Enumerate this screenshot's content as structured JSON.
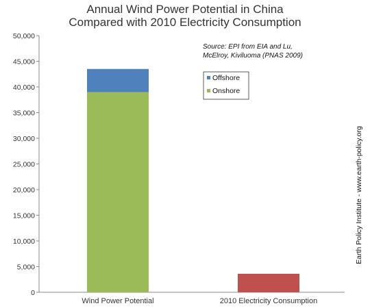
{
  "chart_data": {
    "type": "bar",
    "stacked": true,
    "title_lines": [
      "Annual Wind Power Potential in China",
      "Compared with 2010 Electricity Consumption"
    ],
    "categories": [
      "Wind Power Potential",
      "2010 Electricity Consumption"
    ],
    "series": [
      {
        "name": "Onshore",
        "color": "#9bbb59",
        "values": [
          39000,
          0
        ]
      },
      {
        "name": "Offshore",
        "color": "#4f81bd",
        "values": [
          4500,
          0
        ]
      },
      {
        "name": "",
        "color": "#c0504d",
        "values": [
          0,
          3600
        ]
      }
    ],
    "yticks": [
      "0",
      "5,000",
      "10,000",
      "15,000",
      "20,000",
      "25,000",
      "30,000",
      "35,000",
      "40,000",
      "45,000",
      "50,000"
    ],
    "ylim": [
      0,
      50000
    ],
    "grid": false,
    "legend_position": "top-right",
    "legend_order": [
      "Offshore",
      "Onshore"
    ],
    "source_lines": [
      "Source: EPI from EIA and Lu,",
      "McElroy, Kiviluoma (PNAS 2009)"
    ],
    "credit": "Earth Policy Institute - www.earth-policy.org"
  }
}
